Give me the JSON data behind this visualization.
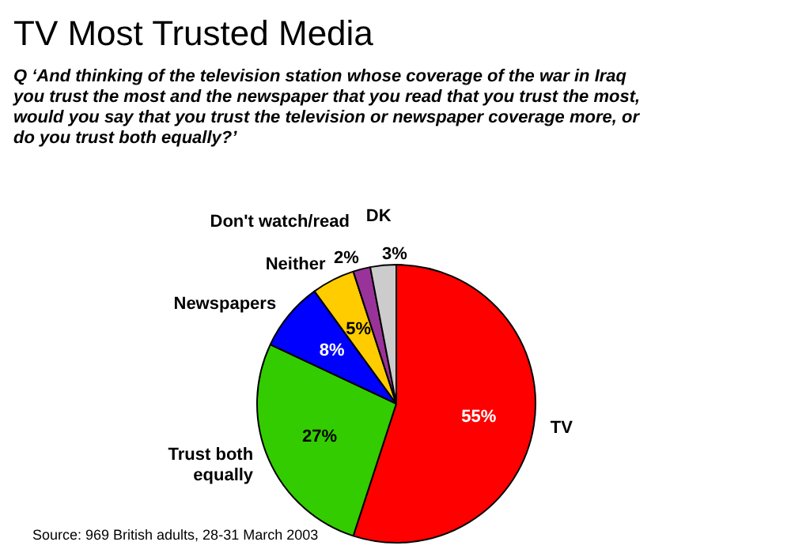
{
  "chart_data": {
    "type": "pie",
    "title": "TV Most Trusted Media",
    "subtitle": "Q ‘And thinking of the television station whose coverage of the war in Iraq you trust the most and the newspaper that you read that you trust the most, would you say that you trust the television or newspaper coverage more, or do you trust both equally?’",
    "categories": [
      "TV",
      "Trust both equally",
      "Newspapers",
      "Neither",
      "Don't watch/read",
      "DK"
    ],
    "values": [
      55,
      27,
      8,
      5,
      2,
      3
    ],
    "colors": [
      "#ff0000",
      "#33cc00",
      "#0000ff",
      "#ffcc00",
      "#993399",
      "#cccccc"
    ],
    "value_labels": [
      "55%",
      "27%",
      "8%",
      "5%",
      "2%",
      "3%"
    ],
    "annotations": [
      "Source: 969 British adults, 28-31 March 2003"
    ]
  }
}
